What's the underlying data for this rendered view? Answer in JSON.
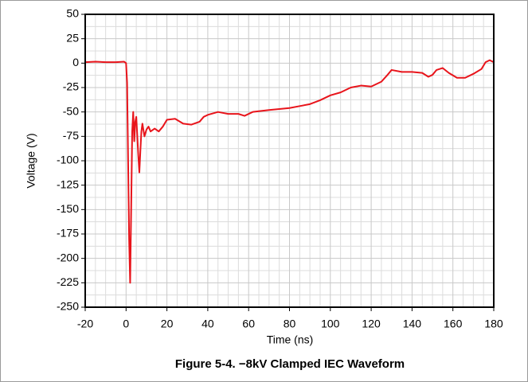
{
  "chart_data": {
    "type": "line",
    "title": "Figure 5-4. −8kV Clamped IEC Waveform",
    "xlabel": "Time (ns)",
    "ylabel": "Voltage (V)",
    "color": "#e8141b",
    "x": [
      -20,
      -15,
      -10,
      -5,
      -1,
      0,
      0.5,
      1,
      1.5,
      2,
      2.5,
      3,
      3.5,
      4,
      4.5,
      5,
      5.5,
      6,
      6.5,
      7,
      7.5,
      8,
      9,
      10,
      11,
      12,
      14,
      16,
      18,
      20,
      24,
      28,
      32,
      36,
      38,
      40,
      45,
      50,
      55,
      58,
      62,
      70,
      80,
      85,
      90,
      95,
      100,
      105,
      110,
      115,
      120,
      125,
      128,
      130,
      135,
      140,
      145,
      148,
      150,
      152,
      155,
      158,
      162,
      166,
      170,
      174,
      176,
      178,
      180
    ],
    "values": [
      1,
      1.5,
      1,
      1,
      1.5,
      0,
      -20,
      -100,
      -180,
      -225,
      -150,
      -70,
      -50,
      -80,
      -60,
      -55,
      -75,
      -95,
      -112,
      -90,
      -70,
      -62,
      -75,
      -68,
      -65,
      -70,
      -67,
      -70,
      -65,
      -58,
      -57,
      -62,
      -63,
      -60,
      -55,
      -53,
      -50,
      -52,
      -52,
      -54,
      -50,
      -48,
      -46,
      -44,
      -42,
      -38,
      -33,
      -30,
      -25,
      -23,
      -24,
      -19,
      -12,
      -7,
      -9,
      -9,
      -10,
      -14,
      -12,
      -7,
      -5,
      -10,
      -15,
      -15,
      -11,
      -6,
      1,
      3,
      1
    ],
    "xlim": [
      -20,
      180
    ],
    "xticks": [
      -20,
      0,
      20,
      40,
      60,
      80,
      100,
      120,
      140,
      160,
      180
    ],
    "ylim": [
      -250,
      50
    ],
    "yticks": [
      50,
      25,
      0,
      -25,
      -50,
      -75,
      -100,
      -125,
      -150,
      -175,
      -200,
      -225,
      -250
    ],
    "grid": true
  }
}
